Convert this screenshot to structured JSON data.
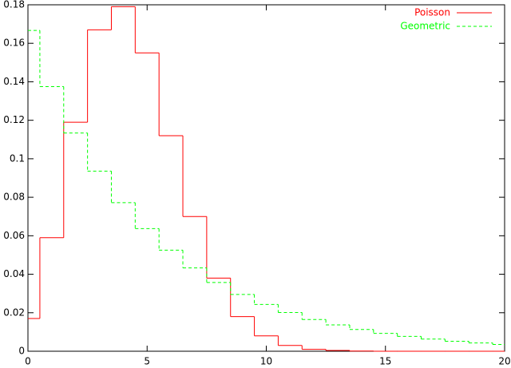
{
  "chart_data": {
    "type": "step",
    "x": [
      0,
      1,
      2,
      3,
      4,
      5,
      6,
      7,
      8,
      9,
      10,
      11,
      12,
      13,
      14,
      15,
      16,
      17,
      18,
      19,
      20
    ],
    "series": [
      {
        "name": "Poisson",
        "color": "#ff0000",
        "dash": false,
        "values": [
          0.017,
          0.059,
          0.119,
          0.167,
          0.179,
          0.155,
          0.112,
          0.07,
          0.038,
          0.018,
          0.008,
          0.003,
          0.001,
          0.0004,
          0.0001,
          0,
          0,
          0,
          0,
          0,
          0
        ]
      },
      {
        "name": "Geometric",
        "color": "#00ff00",
        "dash": true,
        "values": [
          0.1667,
          0.1375,
          0.1134,
          0.0936,
          0.0772,
          0.0637,
          0.0525,
          0.0433,
          0.0357,
          0.0295,
          0.0243,
          0.0201,
          0.0165,
          0.0137,
          0.0113,
          0.0093,
          0.0077,
          0.0063,
          0.0052,
          0.0043,
          0.0035
        ]
      }
    ],
    "xlim": [
      0,
      20
    ],
    "ylim": [
      0,
      0.18
    ],
    "xticks": [
      0,
      5,
      10,
      15,
      20
    ],
    "yticks": [
      0,
      0.02,
      0.04,
      0.06,
      0.08,
      0.1,
      0.12,
      0.14,
      0.16,
      0.18
    ],
    "legend": "top-right"
  }
}
